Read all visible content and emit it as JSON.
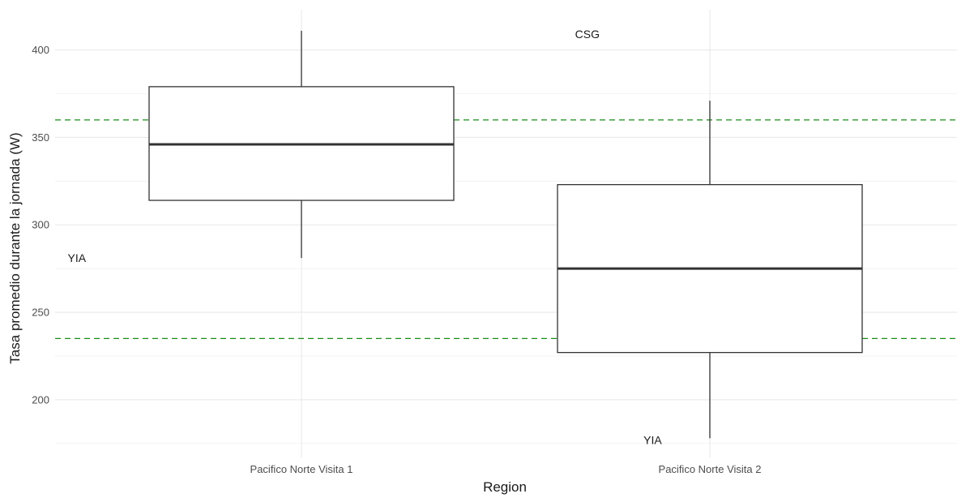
{
  "chart_data": {
    "type": "boxplot",
    "xlabel": "Region",
    "ylabel": "Tasa promedio durante la jornada (W)",
    "categories": [
      "Pacifico Norte Visita 1",
      "Pacifico Norte Visita 2"
    ],
    "ylim": [
      167,
      423
    ],
    "yticks": [
      200,
      250,
      300,
      350,
      400
    ],
    "ytick_labels": [
      "200",
      "250",
      "300",
      "350",
      "400"
    ],
    "boxes": [
      {
        "category": "Pacifico Norte Visita 1",
        "whisker_low": 281,
        "q1": 314,
        "median": 346,
        "q3": 379,
        "whisker_high": 411
      },
      {
        "category": "Pacifico Norte Visita 2",
        "whisker_low": 178,
        "q1": 227,
        "median": 275,
        "q3": 323,
        "whisker_high": 371
      }
    ],
    "reference_lines": [
      {
        "y": 360,
        "color": "#1a8c1a",
        "style": "dashed"
      },
      {
        "y": 235,
        "color": "#1a8c1a",
        "style": "dashed"
      }
    ],
    "annotations": [
      {
        "text": "CSG",
        "x_category": 0,
        "x_offset": 0.7,
        "y": 409
      },
      {
        "text": "YIA",
        "x_category": 0,
        "x_offset": -0.55,
        "y": 281
      },
      {
        "text": "CSG",
        "x_category": 1,
        "x_offset": 0.65,
        "y": 369
      },
      {
        "text": "YIA",
        "x_category": 1,
        "x_offset": -0.14,
        "y": 177
      }
    ],
    "grid": true,
    "colors": {
      "box_stroke": "#333333",
      "grid": "#ebebeb",
      "reference": "#1a8c1a"
    }
  }
}
